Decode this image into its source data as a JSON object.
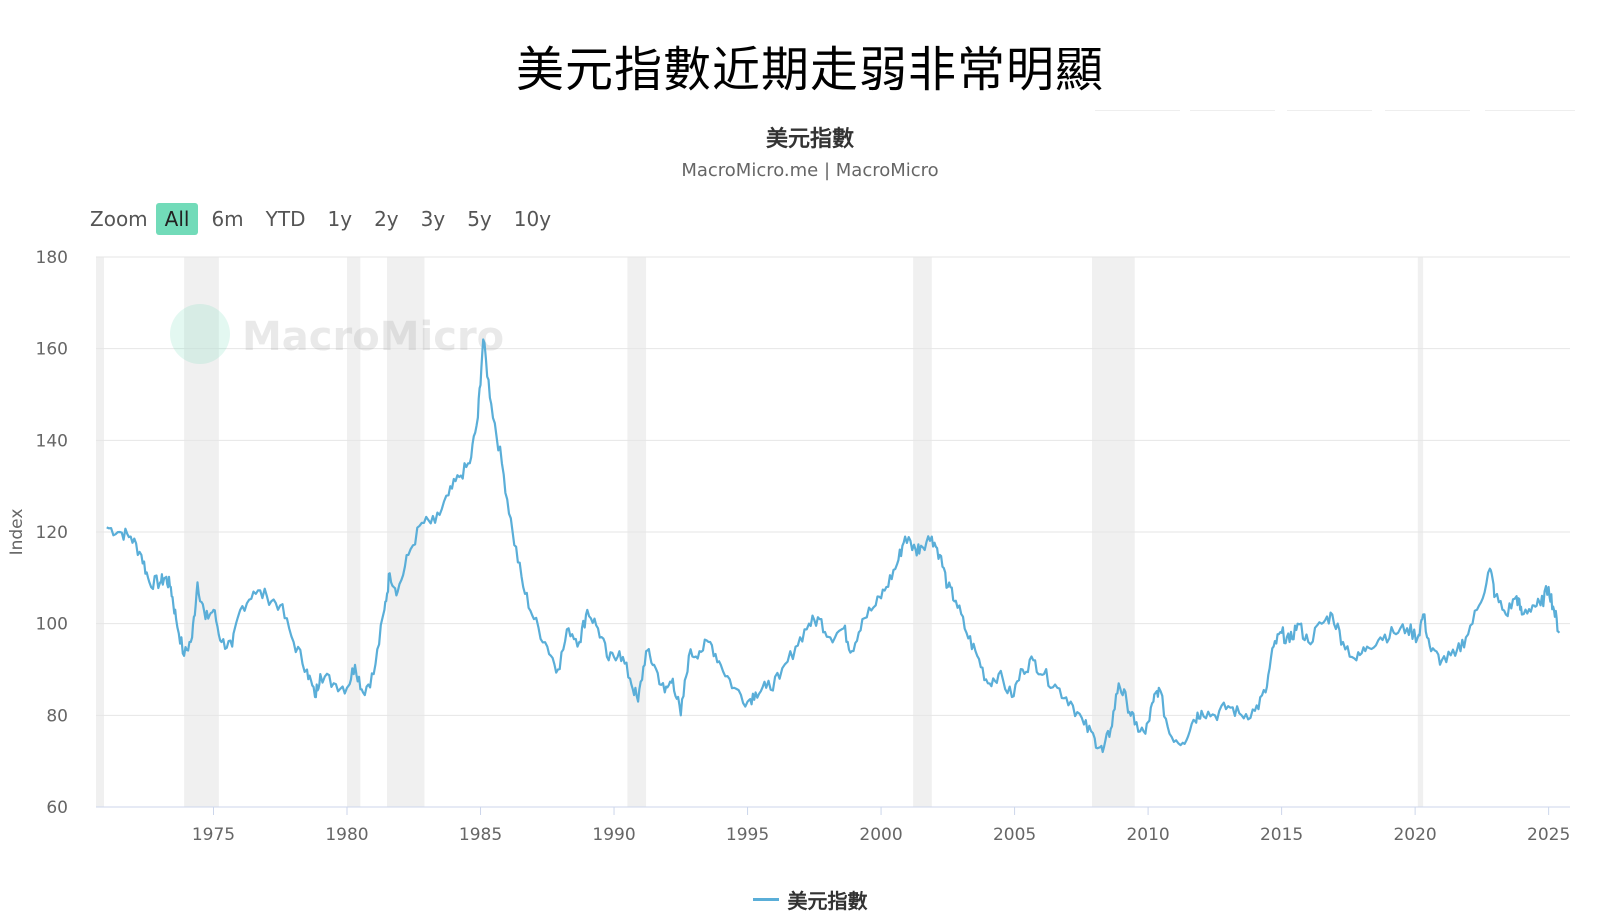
{
  "headline": "美元指數近期走弱非常明顯",
  "chart_data": {
    "type": "line",
    "title": "美元指數",
    "subtitle": "MacroMicro.me | MacroMicro",
    "ylabel": "Index",
    "xlabel": "",
    "ylim": [
      60,
      180
    ],
    "xlim": [
      1970.6,
      2025.8
    ],
    "yticks": [
      60,
      80,
      100,
      120,
      140,
      160,
      180
    ],
    "xticks": [
      1975,
      1980,
      1985,
      1990,
      1995,
      2000,
      2005,
      2010,
      2015,
      2020,
      2025
    ],
    "grid": true,
    "legend_position": "bottom-center",
    "watermark": "MacroMicro",
    "zoom": {
      "label": "Zoom",
      "buttons": [
        "All",
        "6m",
        "YTD",
        "1y",
        "2y",
        "3y",
        "5y",
        "10y"
      ],
      "active": "All"
    },
    "recessions": [
      [
        1970.6,
        1970.9
      ],
      [
        1973.9,
        1975.2
      ],
      [
        1980.0,
        1980.5
      ],
      [
        1981.5,
        1982.9
      ],
      [
        1990.5,
        1991.2
      ],
      [
        2001.2,
        2001.9
      ],
      [
        2007.9,
        2009.5
      ],
      [
        2020.1,
        2020.3
      ]
    ],
    "series": [
      {
        "name": "美元指數",
        "color": "#5aaed8",
        "x": [
          1971.0,
          1971.5,
          1971.9,
          1972.3,
          1972.6,
          1973.0,
          1973.2,
          1973.4,
          1973.6,
          1973.9,
          1974.2,
          1974.4,
          1974.7,
          1975.0,
          1975.3,
          1975.7,
          1976.0,
          1976.5,
          1977.0,
          1977.5,
          1978.0,
          1978.5,
          1978.8,
          1979.0,
          1979.5,
          1980.0,
          1980.3,
          1980.6,
          1981.0,
          1981.4,
          1981.6,
          1981.9,
          1982.3,
          1982.8,
          1983.3,
          1983.8,
          1984.2,
          1984.6,
          1984.9,
          1985.1,
          1985.4,
          1985.8,
          1986.2,
          1986.6,
          1987.0,
          1987.5,
          1987.9,
          1988.3,
          1988.7,
          1989.0,
          1989.4,
          1989.8,
          1990.2,
          1990.6,
          1990.9,
          1991.2,
          1991.5,
          1991.9,
          1992.2,
          1992.5,
          1992.8,
          1993.2,
          1993.6,
          1994.0,
          1994.5,
          1995.0,
          1995.3,
          1995.7,
          1996.2,
          1996.8,
          1997.3,
          1997.7,
          1998.1,
          1998.6,
          1998.9,
          1999.3,
          1999.8,
          2000.2,
          2000.6,
          2000.9,
          2001.3,
          2001.5,
          2001.9,
          2002.2,
          2002.5,
          2002.8,
          2003.2,
          2003.6,
          2004.0,
          2004.4,
          2004.9,
          2005.3,
          2005.7,
          2006.1,
          2006.6,
          2007.1,
          2007.6,
          2008.0,
          2008.3,
          2008.6,
          2008.9,
          2009.2,
          2009.5,
          2009.9,
          2010.2,
          2010.4,
          2010.8,
          2011.3,
          2011.7,
          2012.0,
          2012.5,
          2013.0,
          2013.5,
          2014.0,
          2014.4,
          2014.7,
          2015.0,
          2015.3,
          2015.6,
          2016.0,
          2016.5,
          2016.9,
          2017.3,
          2017.8,
          2018.2,
          2018.7,
          2019.2,
          2019.7,
          2020.1,
          2020.3,
          2020.6,
          2021.0,
          2021.5,
          2021.9,
          2022.4,
          2022.8,
          2023.0,
          2023.4,
          2023.8,
          2024.0,
          2024.4,
          2024.7,
          2025.0,
          2025.2,
          2025.4
        ],
        "values": [
          121,
          120,
          119,
          115,
          109,
          109,
          110,
          108,
          101,
          93,
          97,
          109,
          101,
          103,
          96,
          95,
          103,
          107,
          106,
          104,
          96,
          90,
          84,
          89,
          87,
          86,
          91,
          85,
          89,
          103,
          111,
          107,
          115,
          122,
          122,
          128,
          132,
          135,
          145,
          162,
          148,
          135,
          120,
          108,
          101,
          95,
          90,
          99,
          96,
          103,
          99,
          92,
          94,
          88,
          83,
          94,
          91,
          85,
          88,
          80,
          93,
          94,
          96,
          91,
          86,
          83,
          85,
          86,
          88,
          95,
          100,
          101,
          97,
          99,
          94,
          101,
          104,
          108,
          113,
          119,
          116,
          117,
          119,
          115,
          108,
          105,
          98,
          93,
          87,
          89,
          84,
          90,
          92,
          89,
          86,
          83,
          78,
          75,
          72,
          77,
          87,
          83,
          78,
          76,
          83,
          86,
          76,
          74,
          79,
          81,
          80,
          82,
          80,
          81,
          85,
          95,
          98,
          96,
          100,
          96,
          100,
          102,
          96,
          92,
          95,
          97,
          98,
          99,
          97,
          102,
          94,
          92,
          93,
          97,
          104,
          112,
          106,
          102,
          106,
          102,
          104,
          104,
          108,
          103,
          98
        ]
      }
    ]
  }
}
